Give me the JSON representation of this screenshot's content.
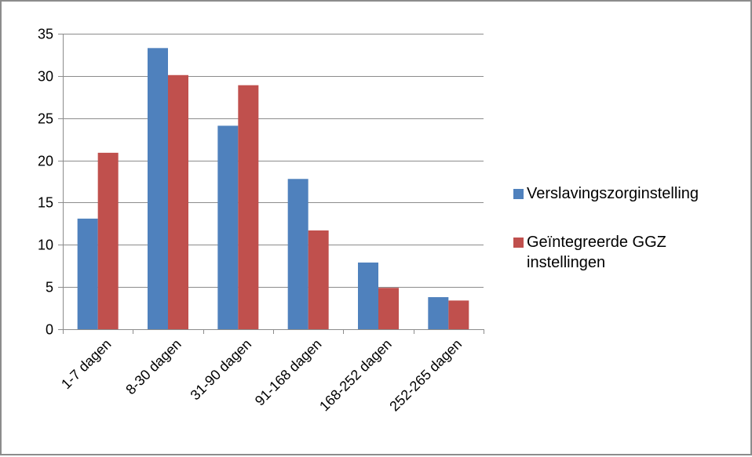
{
  "chart_data": {
    "type": "bar",
    "categories": [
      "1-7 dagen",
      "8-30 dagen",
      "31-90 dagen",
      "91-168 dagen",
      "168-252 dagen",
      "252-265 dagen"
    ],
    "series": [
      {
        "name": "Verslavingszorginstelling",
        "color": "#4f81bd",
        "values": [
          13.1,
          33.3,
          24.1,
          17.8,
          7.9,
          3.8
        ]
      },
      {
        "name": "Geïntegreerde GGZ instellingen",
        "color": "#c0504d",
        "values": [
          20.9,
          30.1,
          28.9,
          11.7,
          4.9,
          3.4
        ]
      }
    ],
    "ylim": [
      0,
      35
    ],
    "yticks": [
      0,
      5,
      10,
      15,
      20,
      25,
      30,
      35
    ],
    "ytick_labels": [
      "0",
      "5",
      "10",
      "15",
      "20",
      "25",
      "30",
      "35"
    ],
    "grid": true,
    "legend_position": "right",
    "title": "",
    "xlabel": "",
    "ylabel": ""
  }
}
